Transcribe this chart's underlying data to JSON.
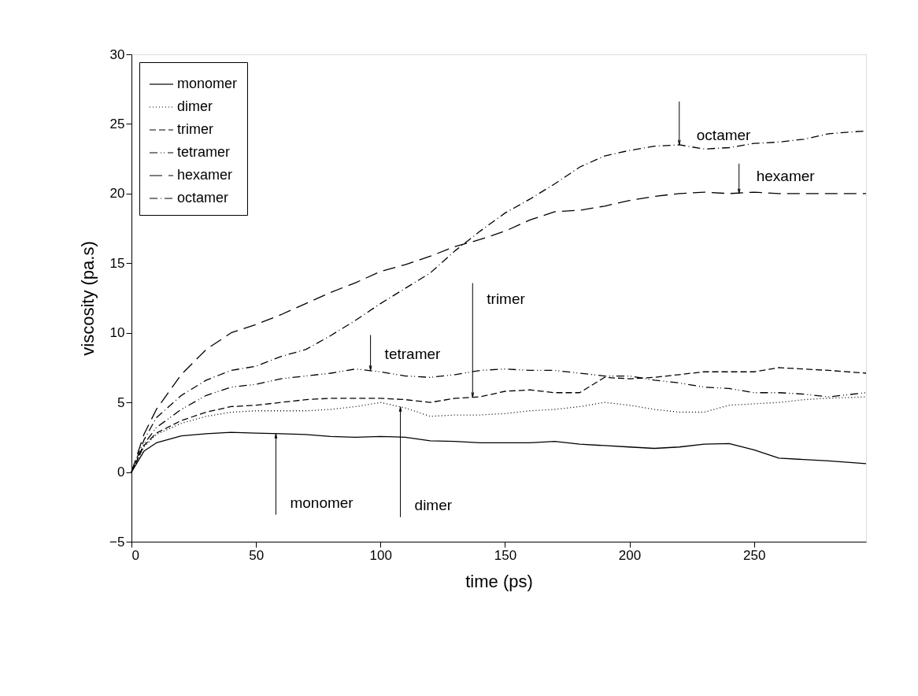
{
  "chart_data": {
    "type": "line",
    "xlabel": "time (ps)",
    "ylabel": "viscosity (pa.s)",
    "x": [
      0,
      5,
      10,
      20,
      30,
      40,
      50,
      60,
      70,
      80,
      90,
      100,
      110,
      120,
      130,
      140,
      150,
      160,
      170,
      180,
      190,
      200,
      210,
      220,
      230,
      240,
      250,
      260,
      270,
      280,
      295
    ],
    "xlim": [
      0,
      295
    ],
    "ylim": [
      -5,
      30
    ],
    "xticks": [
      0,
      50,
      100,
      150,
      200,
      250
    ],
    "yticks": [
      -5,
      0,
      5,
      10,
      15,
      20,
      25,
      30
    ],
    "grid": false,
    "legend": "top left",
    "marker": "none",
    "series": [
      {
        "name": "monomer",
        "color": "#000000",
        "line_style": "solid",
        "values": [
          0,
          1.5,
          2.1,
          2.6,
          2.75,
          2.85,
          2.8,
          2.75,
          2.7,
          2.55,
          2.5,
          2.55,
          2.5,
          2.25,
          2.2,
          2.1,
          2.1,
          2.1,
          2.2,
          2.0,
          1.9,
          1.8,
          1.7,
          1.8,
          2.0,
          2.05,
          1.6,
          1.0,
          0.9,
          0.8,
          0.6
        ]
      },
      {
        "name": "dimer",
        "color": "#000000",
        "line_style": "dotted",
        "values": [
          0,
          1.8,
          2.7,
          3.5,
          4.0,
          4.3,
          4.4,
          4.4,
          4.4,
          4.5,
          4.7,
          5.0,
          4.6,
          4.0,
          4.1,
          4.1,
          4.2,
          4.4,
          4.5,
          4.7,
          5.0,
          4.8,
          4.5,
          4.3,
          4.3,
          4.8,
          4.9,
          5.0,
          5.2,
          5.3,
          5.4
        ]
      },
      {
        "name": "trimer",
        "color": "#000000",
        "line_style": "dashed",
        "values": [
          0,
          1.9,
          2.8,
          3.7,
          4.3,
          4.7,
          4.8,
          5.0,
          5.2,
          5.3,
          5.3,
          5.3,
          5.2,
          5.0,
          5.3,
          5.4,
          5.8,
          5.9,
          5.7,
          5.7,
          6.8,
          6.7,
          6.8,
          7.0,
          7.2,
          7.2,
          7.2,
          7.5,
          7.4,
          7.3,
          7.1
        ]
      },
      {
        "name": "tetramer",
        "color": "#000000",
        "line_style": "dashdotdot",
        "values": [
          0,
          2.0,
          3.2,
          4.5,
          5.5,
          6.1,
          6.3,
          6.7,
          6.9,
          7.1,
          7.4,
          7.2,
          6.9,
          6.8,
          7.0,
          7.3,
          7.4,
          7.3,
          7.3,
          7.1,
          6.9,
          6.9,
          6.6,
          6.4,
          6.1,
          6.0,
          5.7,
          5.7,
          5.6,
          5.4,
          5.7
        ]
      },
      {
        "name": "hexamer",
        "color": "#000000",
        "line_style": "longdash",
        "values": [
          0,
          2.7,
          4.5,
          7.0,
          8.8,
          10.0,
          10.6,
          11.3,
          12.1,
          12.9,
          13.6,
          14.4,
          14.9,
          15.5,
          16.2,
          16.7,
          17.3,
          18.1,
          18.7,
          18.8,
          19.1,
          19.5,
          19.8,
          20.0,
          20.1,
          20.0,
          20.1,
          20.0,
          20.0,
          20.0,
          20.0
        ]
      },
      {
        "name": "octamer",
        "color": "#000000",
        "line_style": "dashdot",
        "values": [
          0,
          2.3,
          3.9,
          5.5,
          6.6,
          7.3,
          7.6,
          8.3,
          8.8,
          9.8,
          10.9,
          12.1,
          13.2,
          14.3,
          15.9,
          17.3,
          18.6,
          19.6,
          20.7,
          21.9,
          22.7,
          23.1,
          23.4,
          23.5,
          23.2,
          23.3,
          23.6,
          23.7,
          23.9,
          24.3,
          24.5
        ]
      }
    ],
    "annotations": [
      {
        "text": "monomer",
        "x": 58,
        "y": 2.76
      },
      {
        "text": "dimer",
        "x": 108,
        "y": 4.68
      },
      {
        "text": "trimer",
        "x": 137,
        "y": 5.37
      },
      {
        "text": "tetramer",
        "x": 96,
        "y": 7.3
      },
      {
        "text": "octamer",
        "x": 220,
        "y": 23.5
      },
      {
        "text": "hexamer",
        "x": 244,
        "y": 20.0
      }
    ]
  }
}
